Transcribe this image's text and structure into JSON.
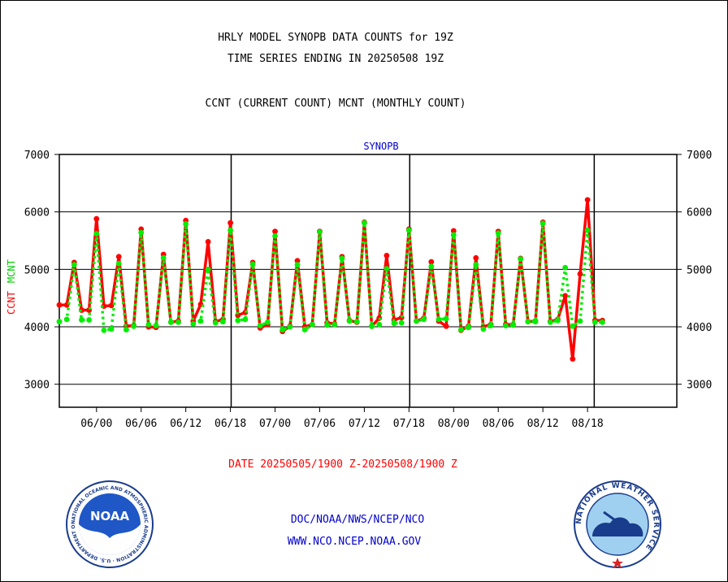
{
  "header": {
    "title_line1": "HRLY MODEL SYNOPB DATA COUNTS for 19Z",
    "title_line2": "TIME SERIES ENDING IN 20250508 19Z",
    "subtitle": "CCNT (CURRENT COUNT) MCNT (MONTHLY COUNT)"
  },
  "footer": {
    "date_range": "DATE 20250505/1900 Z-20250508/1900 Z",
    "org": "DOC/NOAA/NWS/NCEP/NCO",
    "url": "WWW.NCO.NCEP.NOAA.GOV"
  },
  "logos": {
    "noaa_text": "NOAA",
    "noaa_ring_text": "NATIONAL OCEANIC AND ATMOSPHERIC ADMINISTRATION · U.S. DEPARTMENT OF COMMERCE",
    "nws_ring_text": "NATIONAL WEATHER SERVICE"
  },
  "colors": {
    "ccnt": "#ff0000",
    "mcnt": "#00ee00",
    "plot_label": "#0000cc",
    "footer_text": "#0000cc",
    "date_text": "#ff0000",
    "axis": "#000000"
  },
  "chart_data": {
    "type": "line",
    "plot_label": "SYNOPB",
    "ylabel_ccnt": "CCNT",
    "ylabel_mcnt": "MCNT",
    "ylim": [
      2600,
      7000
    ],
    "yticks": [
      3000,
      4000,
      5000,
      6000,
      7000
    ],
    "xlim": [
      -5,
      78
    ],
    "x_ticks": [
      {
        "x": 0,
        "label": "06/00"
      },
      {
        "x": 6,
        "label": "06/06"
      },
      {
        "x": 12,
        "label": "06/12"
      },
      {
        "x": 18,
        "label": "06/18"
      },
      {
        "x": 24,
        "label": "07/00"
      },
      {
        "x": 30,
        "label": "07/06"
      },
      {
        "x": 36,
        "label": "07/12"
      },
      {
        "x": 42,
        "label": "07/18"
      },
      {
        "x": 48,
        "label": "08/00"
      },
      {
        "x": 54,
        "label": "08/06"
      },
      {
        "x": 60,
        "label": "08/12"
      },
      {
        "x": 66,
        "label": "08/18"
      }
    ],
    "vlines": [
      18.1,
      42.1,
      66.9
    ],
    "grid": true,
    "x": [
      -5,
      -4,
      -3,
      -2,
      -1,
      0,
      1,
      2,
      3,
      4,
      5,
      6,
      7,
      8,
      9,
      10,
      11,
      12,
      13,
      14,
      15,
      16,
      17,
      18,
      19,
      20,
      21,
      22,
      23,
      24,
      25,
      26,
      27,
      28,
      29,
      30,
      31,
      32,
      33,
      34,
      35,
      36,
      37,
      38,
      39,
      40,
      41,
      42,
      43,
      44,
      45,
      46,
      47,
      48,
      49,
      50,
      51,
      52,
      53,
      54,
      55,
      56,
      57,
      58,
      59,
      60,
      61,
      62,
      63,
      64,
      65,
      66,
      67,
      68
    ],
    "series": [
      {
        "name": "CCNT",
        "values": [
          4380,
          4380,
          5120,
          4290,
          4290,
          5880,
          4360,
          4370,
          5220,
          4010,
          4020,
          5700,
          4000,
          3990,
          5260,
          4080,
          4100,
          5850,
          4100,
          4390,
          5480,
          4090,
          4130,
          5810,
          4200,
          4250,
          5120,
          3980,
          4040,
          5660,
          3920,
          4010,
          5150,
          4000,
          4040,
          5660,
          4070,
          4050,
          5220,
          4110,
          4080,
          5820,
          4010,
          4150,
          5240,
          4120,
          4160,
          5700,
          4100,
          4150,
          5130,
          4100,
          4010,
          5670,
          3940,
          4010,
          5200,
          4000,
          4040,
          5660,
          4040,
          4040,
          5190,
          4090,
          4100,
          5820,
          4090,
          4130,
          4540,
          3440,
          4920,
          6210,
          4110,
          4110
        ]
      },
      {
        "name": "MCNT",
        "values": [
          4090,
          4130,
          5080,
          4120,
          4120,
          5620,
          3940,
          3960,
          5100,
          3950,
          4010,
          5640,
          4040,
          4020,
          5200,
          4080,
          4080,
          5790,
          4050,
          4100,
          5000,
          4070,
          4090,
          5680,
          4110,
          4130,
          5090,
          4020,
          4080,
          5580,
          3950,
          4000,
          5080,
          3950,
          4040,
          5650,
          4030,
          4040,
          5190,
          4100,
          4090,
          5810,
          4010,
          4040,
          5010,
          4060,
          4070,
          5680,
          4100,
          4130,
          5050,
          4130,
          4140,
          5600,
          3950,
          3990,
          5080,
          3960,
          4020,
          5630,
          4020,
          4030,
          5180,
          4090,
          4090,
          5800,
          4080,
          4110,
          5030,
          4010,
          4100,
          5680,
          4080,
          4080
        ]
      }
    ]
  }
}
